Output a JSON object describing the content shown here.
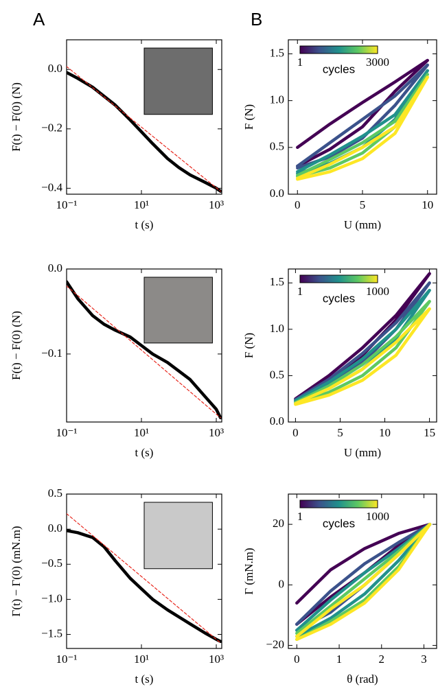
{
  "panel_labels": [
    "A",
    "B"
  ],
  "chart_data": [
    {
      "type": "line",
      "xscale": "log",
      "xlabel": "t (s)",
      "ylabel": "F(t) − F(0) (N)",
      "xlim": [
        0.1,
        1400
      ],
      "ylim": [
        -0.42,
        0.1
      ],
      "xticks": [
        {
          "value": 0.1,
          "label": "10⁻¹"
        },
        {
          "value": 10,
          "label": "10¹"
        },
        {
          "value": 1000,
          "label": "10³"
        }
      ],
      "yticks": [
        {
          "value": 0.0,
          "label": "0.0"
        },
        {
          "value": -0.2,
          "label": "−0.2"
        },
        {
          "value": -0.4,
          "label": "−0.4"
        }
      ],
      "series": [
        {
          "color": "#000000",
          "style": "solid",
          "x": [
            0.1,
            0.2,
            0.5,
            1,
            2,
            5,
            10,
            20,
            50,
            100,
            200,
            500,
            1000,
            1300
          ],
          "values": [
            -0.01,
            -0.03,
            -0.06,
            -0.09,
            -0.12,
            -0.17,
            -0.21,
            -0.25,
            -0.3,
            -0.33,
            -0.355,
            -0.38,
            -0.4,
            -0.41
          ]
        },
        {
          "color": "#e8281e",
          "style": "dashed",
          "x": [
            0.1,
            1300
          ],
          "values": [
            0.01,
            -0.41
          ]
        }
      ]
    },
    {
      "type": "line",
      "xscale": "log",
      "xlabel": "t (s)",
      "ylabel": "F(t) − F(0) (N)",
      "xlim": [
        0.1,
        1400
      ],
      "ylim": [
        -0.18,
        0.0
      ],
      "xticks": [
        {
          "value": 0.1,
          "label": "10⁻¹"
        },
        {
          "value": 10,
          "label": "10¹"
        },
        {
          "value": 1000,
          "label": "10³"
        }
      ],
      "yticks": [
        {
          "value": 0.0,
          "label": "0.0"
        },
        {
          "value": -0.1,
          "label": "−0.1"
        }
      ],
      "series": [
        {
          "color": "#000000",
          "style": "solid",
          "x": [
            0.1,
            0.2,
            0.5,
            1,
            2,
            5,
            10,
            20,
            50,
            100,
            200,
            500,
            1000,
            1300
          ],
          "values": [
            -0.015,
            -0.035,
            -0.055,
            -0.065,
            -0.072,
            -0.08,
            -0.09,
            -0.1,
            -0.11,
            -0.12,
            -0.13,
            -0.15,
            -0.165,
            -0.175
          ]
        },
        {
          "color": "#e8281e",
          "style": "dashed",
          "x": [
            0.1,
            1300
          ],
          "values": [
            -0.02,
            -0.175
          ]
        }
      ]
    },
    {
      "type": "line",
      "xscale": "log",
      "xlabel": "t (s)",
      "ylabel": "Γ(t) − Γ(0) (mN.m)",
      "xlim": [
        0.1,
        1400
      ],
      "ylim": [
        -1.7,
        0.5
      ],
      "xticks": [
        {
          "value": 0.1,
          "label": "10⁻¹"
        },
        {
          "value": 10,
          "label": "10¹"
        },
        {
          "value": 1000,
          "label": "10³"
        }
      ],
      "yticks": [
        {
          "value": 0.5,
          "label": "0.5"
        },
        {
          "value": 0.0,
          "label": "0.0"
        },
        {
          "value": -0.5,
          "label": "−0.5"
        },
        {
          "value": -1.0,
          "label": "−1.0"
        },
        {
          "value": -1.5,
          "label": "−1.5"
        }
      ],
      "series": [
        {
          "color": "#000000",
          "style": "solid",
          "x": [
            0.1,
            0.2,
            0.5,
            1,
            2,
            5,
            10,
            20,
            50,
            100,
            200,
            500,
            1000,
            1300
          ],
          "values": [
            -0.02,
            -0.05,
            -0.12,
            -0.25,
            -0.45,
            -0.7,
            -0.85,
            -1.0,
            -1.15,
            -1.25,
            -1.35,
            -1.48,
            -1.57,
            -1.6
          ]
        },
        {
          "color": "#e8281e",
          "style": "dashed",
          "x": [
            0.1,
            1300
          ],
          "values": [
            0.22,
            -1.62
          ]
        }
      ]
    },
    {
      "type": "line",
      "xlabel": "U (mm)",
      "ylabel": "F (N)",
      "xlim": [
        -0.7,
        10.7
      ],
      "ylim": [
        0,
        1.65
      ],
      "xticks": [
        0,
        5,
        10
      ],
      "yticks": [
        {
          "value": 0.0,
          "label": "0.0"
        },
        {
          "value": 0.5,
          "label": "0.5"
        },
        {
          "value": 1.0,
          "label": "1.0"
        },
        {
          "value": 1.5,
          "label": "1.5"
        }
      ],
      "colorbar": {
        "label": "cycles",
        "ticks": [
          1,
          3000
        ],
        "colors": [
          "#440154",
          "#3b528b",
          "#21918c",
          "#5ec962",
          "#fde725"
        ]
      },
      "series": [
        {
          "color": "#440154",
          "style": "solid",
          "x": [
            0,
            2.5,
            5,
            7.5,
            10,
            7.5,
            5,
            2.5,
            0
          ],
          "values": [
            0.5,
            0.75,
            0.98,
            1.2,
            1.43,
            1.1,
            0.72,
            0.48,
            0.3
          ]
        },
        {
          "color": "#3b528b",
          "style": "solid",
          "x": [
            0,
            2.5,
            5,
            7.5,
            10,
            7.5,
            5,
            2.5,
            0
          ],
          "values": [
            0.3,
            0.55,
            0.8,
            1.05,
            1.38,
            0.95,
            0.6,
            0.4,
            0.28
          ]
        },
        {
          "color": "#21918c",
          "style": "solid",
          "x": [
            0,
            2.5,
            5,
            7.5,
            10,
            7.5,
            5,
            2.5,
            0
          ],
          "values": [
            0.24,
            0.42,
            0.62,
            0.85,
            1.32,
            0.8,
            0.5,
            0.33,
            0.22
          ]
        },
        {
          "color": "#5ec962",
          "style": "solid",
          "x": [
            0,
            2.5,
            5,
            7.5,
            10,
            7.5,
            5,
            2.5,
            0
          ],
          "values": [
            0.2,
            0.37,
            0.55,
            0.78,
            1.28,
            0.72,
            0.44,
            0.28,
            0.19
          ]
        },
        {
          "color": "#fde725",
          "style": "solid",
          "x": [
            0,
            2.5,
            5,
            7.5,
            10,
            7.5,
            5,
            2.5,
            0
          ],
          "values": [
            0.17,
            0.32,
            0.5,
            0.72,
            1.25,
            0.65,
            0.38,
            0.24,
            0.16
          ]
        }
      ]
    },
    {
      "type": "line",
      "xlabel": "U (mm)",
      "ylabel": "F (N)",
      "xlim": [
        -0.8,
        15.8
      ],
      "ylim": [
        0,
        1.65
      ],
      "xticks": [
        0,
        5,
        10,
        15
      ],
      "yticks": [
        {
          "value": 0.0,
          "label": "0.0"
        },
        {
          "value": 0.5,
          "label": "0.5"
        },
        {
          "value": 1.0,
          "label": "1.0"
        },
        {
          "value": 1.5,
          "label": "1.5"
        }
      ],
      "colorbar": {
        "label": "cycles",
        "ticks": [
          1,
          1000
        ],
        "colors": [
          "#440154",
          "#3b528b",
          "#21918c",
          "#5ec962",
          "#fde725"
        ]
      },
      "series": [
        {
          "color": "#440154",
          "style": "solid",
          "x": [
            0,
            3.75,
            7.5,
            11.25,
            15,
            11.25,
            7.5,
            3.75,
            0
          ],
          "values": [
            0.25,
            0.5,
            0.8,
            1.15,
            1.6,
            1.1,
            0.72,
            0.45,
            0.25
          ]
        },
        {
          "color": "#3b528b",
          "style": "solid",
          "x": [
            0,
            3.75,
            7.5,
            11.25,
            15,
            11.25,
            7.5,
            3.75,
            0
          ],
          "values": [
            0.24,
            0.46,
            0.74,
            1.07,
            1.5,
            1.0,
            0.64,
            0.4,
            0.23
          ]
        },
        {
          "color": "#21918c",
          "style": "solid",
          "x": [
            0,
            3.75,
            7.5,
            11.25,
            15,
            11.25,
            7.5,
            3.75,
            0
          ],
          "values": [
            0.23,
            0.43,
            0.68,
            1.0,
            1.42,
            0.9,
            0.57,
            0.36,
            0.22
          ]
        },
        {
          "color": "#5ec962",
          "style": "solid",
          "x": [
            0,
            3.75,
            7.5,
            11.25,
            15,
            11.25,
            7.5,
            3.75,
            0
          ],
          "values": [
            0.21,
            0.39,
            0.62,
            0.92,
            1.3,
            0.8,
            0.5,
            0.32,
            0.2
          ]
        },
        {
          "color": "#fde725",
          "style": "solid",
          "x": [
            0,
            3.75,
            7.5,
            11.25,
            15,
            11.25,
            7.5,
            3.75,
            0
          ],
          "values": [
            0.2,
            0.36,
            0.57,
            0.86,
            1.22,
            0.72,
            0.45,
            0.29,
            0.19
          ]
        }
      ]
    },
    {
      "type": "line",
      "xlabel": "θ (rad)",
      "ylabel": "Γ (mN.m)",
      "xlim": [
        -0.2,
        3.3
      ],
      "ylim": [
        -21,
        30
      ],
      "xticks": [
        0,
        1,
        2,
        3
      ],
      "yticks": [
        20,
        0,
        {
          "value": -20,
          "label": "−20"
        }
      ],
      "colorbar": {
        "label": "cycles",
        "ticks": [
          1,
          1000
        ],
        "colors": [
          "#440154",
          "#3b528b",
          "#21918c",
          "#5ec962",
          "#fde725"
        ]
      },
      "series": [
        {
          "color": "#440154",
          "style": "solid",
          "x": [
            0,
            0.8,
            1.6,
            2.4,
            3.14,
            2.4,
            1.6,
            0.8,
            0
          ],
          "values": [
            -6,
            5,
            12,
            17,
            20,
            13,
            4,
            -4,
            -13
          ]
        },
        {
          "color": "#3b528b",
          "style": "solid",
          "x": [
            0,
            0.8,
            1.6,
            2.4,
            3.14,
            2.4,
            1.6,
            0.8,
            0
          ],
          "values": [
            -13,
            -2,
            7,
            14,
            20,
            10,
            0,
            -9,
            -15
          ]
        },
        {
          "color": "#21918c",
          "style": "solid",
          "x": [
            0,
            0.8,
            1.6,
            2.4,
            3.14,
            2.4,
            1.6,
            0.8,
            0
          ],
          "values": [
            -15,
            -5,
            4,
            12,
            20,
            8,
            -3,
            -11,
            -17
          ]
        },
        {
          "color": "#5ec962",
          "style": "solid",
          "x": [
            0,
            0.8,
            1.6,
            2.4,
            3.14,
            2.4,
            1.6,
            0.8,
            0
          ],
          "values": [
            -16,
            -7,
            2,
            11,
            20,
            6,
            -5,
            -12,
            -18
          ]
        },
        {
          "color": "#fde725",
          "style": "solid",
          "x": [
            0,
            0.8,
            1.6,
            2.4,
            3.14,
            2.4,
            1.6,
            0.8,
            0
          ],
          "values": [
            -17,
            -8,
            0,
            10,
            20,
            5,
            -6,
            -13,
            -18
          ]
        }
      ]
    }
  ]
}
